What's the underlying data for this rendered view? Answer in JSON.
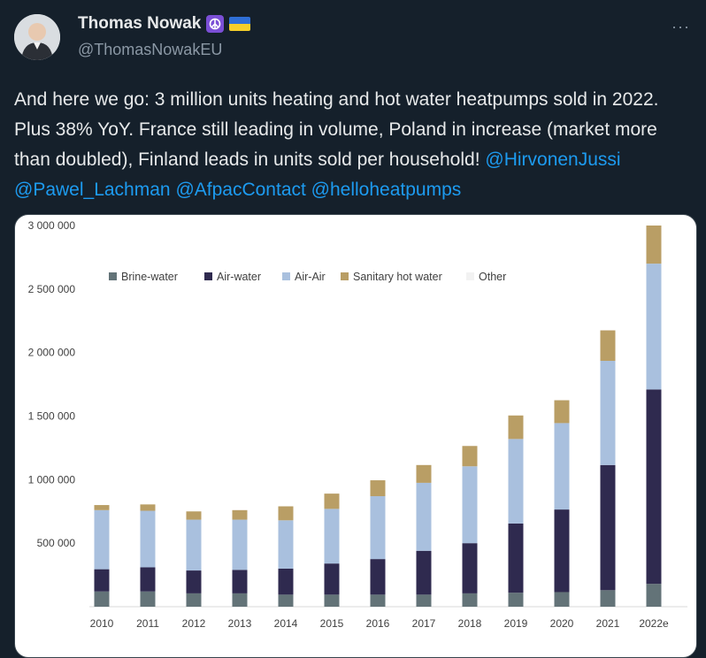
{
  "tweet": {
    "display_name": "Thomas Nowak",
    "handle": "@ThomasNowakEU",
    "more_label": "···",
    "text": "And here we go: 3 million units heating and hot water heatpumps sold in 2022. Plus 38% YoY. France still leading in volume, Poland in increase (market more than doubled), Finland leads in units sold per household! ",
    "mentions": [
      "@HirvonenJussi",
      "@Pawel_Lachman",
      "@AfpacContact",
      "@helloheatpumps"
    ],
    "badges": [
      "peace-icon",
      "ukraine-flag-icon"
    ]
  },
  "chart_data": {
    "type": "bar",
    "stacked": true,
    "categories": [
      "2010",
      "2011",
      "2012",
      "2013",
      "2014",
      "2015",
      "2016",
      "2017",
      "2018",
      "2019",
      "2020",
      "2021",
      "2022e"
    ],
    "series": [
      {
        "name": "Brine-water",
        "color": "#637378",
        "values": [
          120000,
          120000,
          105000,
          105000,
          95000,
          95000,
          95000,
          95000,
          105000,
          110000,
          115000,
          130000,
          180000
        ]
      },
      {
        "name": "Air-water",
        "color": "#2f2a4f",
        "values": [
          175000,
          190000,
          180000,
          185000,
          205000,
          245000,
          280000,
          345000,
          395000,
          545000,
          650000,
          985000,
          1530000
        ]
      },
      {
        "name": "Air-Air",
        "color": "#a9c0de",
        "values": [
          465000,
          445000,
          400000,
          395000,
          380000,
          430000,
          495000,
          535000,
          605000,
          665000,
          680000,
          820000,
          990000
        ]
      },
      {
        "name": "Sanitary hot water",
        "color": "#b99e65",
        "values": [
          40000,
          50000,
          65000,
          75000,
          110000,
          120000,
          125000,
          140000,
          160000,
          185000,
          180000,
          240000,
          300000
        ]
      },
      {
        "name": "Other",
        "color": "#f2f2f2",
        "values": [
          0,
          0,
          0,
          0,
          0,
          0,
          0,
          0,
          0,
          0,
          0,
          0,
          0
        ]
      }
    ],
    "ylim": [
      0,
      3000000
    ],
    "yticks": [
      "500 000",
      "1 000 000",
      "1 500 000",
      "2 000 000",
      "2 500 000",
      "3 000 000"
    ],
    "ytick_values": [
      500000,
      1000000,
      1500000,
      2000000,
      2500000,
      3000000
    ],
    "legend_position": "top-left"
  }
}
